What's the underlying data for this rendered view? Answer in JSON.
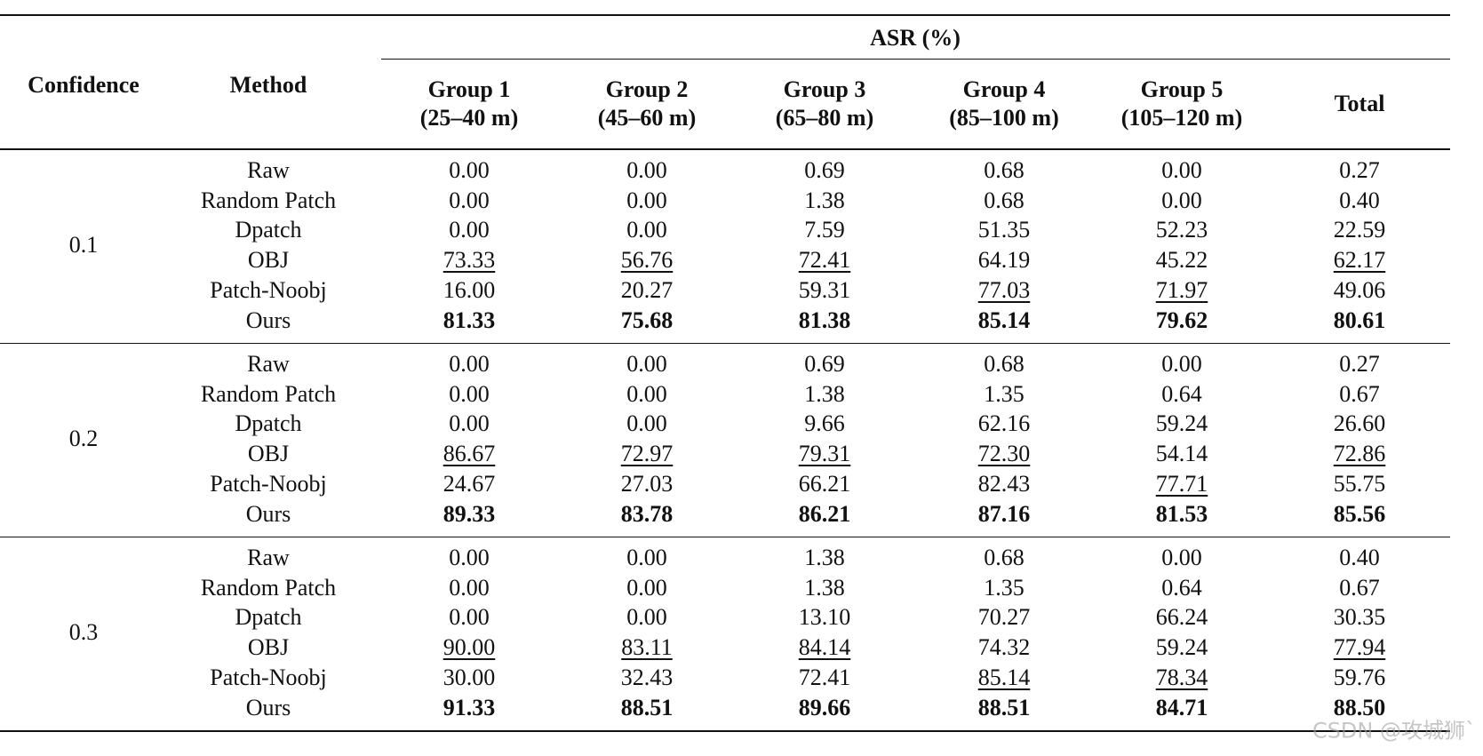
{
  "header": {
    "group_label": "ASR (%)",
    "confidence": "Confidence",
    "method": "Method",
    "groups": [
      {
        "name": "Group 1",
        "range": "(25–40 m)"
      },
      {
        "name": "Group 2",
        "range": "(45–60 m)"
      },
      {
        "name": "Group 3",
        "range": "(65–80 m)"
      },
      {
        "name": "Group 4",
        "range": "(85–100 m)"
      },
      {
        "name": "Group 5",
        "range": "(105–120 m)"
      }
    ],
    "total": "Total"
  },
  "table": {
    "groups": [
      {
        "confidence": "0.1",
        "rows": [
          {
            "method": "Raw",
            "values": [
              "0.00",
              "0.00",
              "0.69",
              "0.68",
              "0.00",
              "0.27"
            ],
            "underline": [
              false,
              false,
              false,
              false,
              false,
              false
            ],
            "bold": false
          },
          {
            "method": "Random Patch",
            "values": [
              "0.00",
              "0.00",
              "1.38",
              "0.68",
              "0.00",
              "0.40"
            ],
            "underline": [
              false,
              false,
              false,
              false,
              false,
              false
            ],
            "bold": false
          },
          {
            "method": "Dpatch",
            "values": [
              "0.00",
              "0.00",
              "7.59",
              "51.35",
              "52.23",
              "22.59"
            ],
            "underline": [
              false,
              false,
              false,
              false,
              false,
              false
            ],
            "bold": false
          },
          {
            "method": "OBJ",
            "values": [
              "73.33",
              "56.76",
              "72.41",
              "64.19",
              "45.22",
              "62.17"
            ],
            "underline": [
              true,
              true,
              true,
              false,
              false,
              true
            ],
            "bold": false
          },
          {
            "method": "Patch-Noobj",
            "values": [
              "16.00",
              "20.27",
              "59.31",
              "77.03",
              "71.97",
              "49.06"
            ],
            "underline": [
              false,
              false,
              false,
              true,
              true,
              false
            ],
            "bold": false
          },
          {
            "method": "Ours",
            "values": [
              "81.33",
              "75.68",
              "81.38",
              "85.14",
              "79.62",
              "80.61"
            ],
            "underline": [
              false,
              false,
              false,
              false,
              false,
              false
            ],
            "bold": true
          }
        ]
      },
      {
        "confidence": "0.2",
        "rows": [
          {
            "method": "Raw",
            "values": [
              "0.00",
              "0.00",
              "0.69",
              "0.68",
              "0.00",
              "0.27"
            ],
            "underline": [
              false,
              false,
              false,
              false,
              false,
              false
            ],
            "bold": false
          },
          {
            "method": "Random Patch",
            "values": [
              "0.00",
              "0.00",
              "1.38",
              "1.35",
              "0.64",
              "0.67"
            ],
            "underline": [
              false,
              false,
              false,
              false,
              false,
              false
            ],
            "bold": false
          },
          {
            "method": "Dpatch",
            "values": [
              "0.00",
              "0.00",
              "9.66",
              "62.16",
              "59.24",
              "26.60"
            ],
            "underline": [
              false,
              false,
              false,
              false,
              false,
              false
            ],
            "bold": false
          },
          {
            "method": "OBJ",
            "values": [
              "86.67",
              "72.97",
              "79.31",
              "72.30",
              "54.14",
              "72.86"
            ],
            "underline": [
              true,
              true,
              true,
              true,
              false,
              true
            ],
            "bold": false
          },
          {
            "method": "Patch-Noobj",
            "values": [
              "24.67",
              "27.03",
              "66.21",
              "82.43",
              "77.71",
              "55.75"
            ],
            "underline": [
              false,
              false,
              false,
              false,
              true,
              false
            ],
            "bold": false
          },
          {
            "method": "Ours",
            "values": [
              "89.33",
              "83.78",
              "86.21",
              "87.16",
              "81.53",
              "85.56"
            ],
            "underline": [
              false,
              false,
              false,
              false,
              false,
              false
            ],
            "bold": true
          }
        ]
      },
      {
        "confidence": "0.3",
        "rows": [
          {
            "method": "Raw",
            "values": [
              "0.00",
              "0.00",
              "1.38",
              "0.68",
              "0.00",
              "0.40"
            ],
            "underline": [
              false,
              false,
              false,
              false,
              false,
              false
            ],
            "bold": false
          },
          {
            "method": "Random Patch",
            "values": [
              "0.00",
              "0.00",
              "1.38",
              "1.35",
              "0.64",
              "0.67"
            ],
            "underline": [
              false,
              false,
              false,
              false,
              false,
              false
            ],
            "bold": false
          },
          {
            "method": "Dpatch",
            "values": [
              "0.00",
              "0.00",
              "13.10",
              "70.27",
              "66.24",
              "30.35"
            ],
            "underline": [
              false,
              false,
              false,
              false,
              false,
              false
            ],
            "bold": false
          },
          {
            "method": "OBJ",
            "values": [
              "90.00",
              "83.11",
              "84.14",
              "74.32",
              "59.24",
              "77.94"
            ],
            "underline": [
              true,
              true,
              true,
              false,
              false,
              true
            ],
            "bold": false
          },
          {
            "method": "Patch-Noobj",
            "values": [
              "30.00",
              "32.43",
              "72.41",
              "85.14",
              "78.34",
              "59.76"
            ],
            "underline": [
              false,
              false,
              false,
              true,
              true,
              false
            ],
            "bold": false
          },
          {
            "method": "Ours",
            "values": [
              "91.33",
              "88.51",
              "89.66",
              "88.51",
              "84.71",
              "88.50"
            ],
            "underline": [
              false,
              false,
              false,
              false,
              false,
              false
            ],
            "bold": true
          }
        ]
      }
    ]
  },
  "watermark": "CSDN @攻城狮`"
}
